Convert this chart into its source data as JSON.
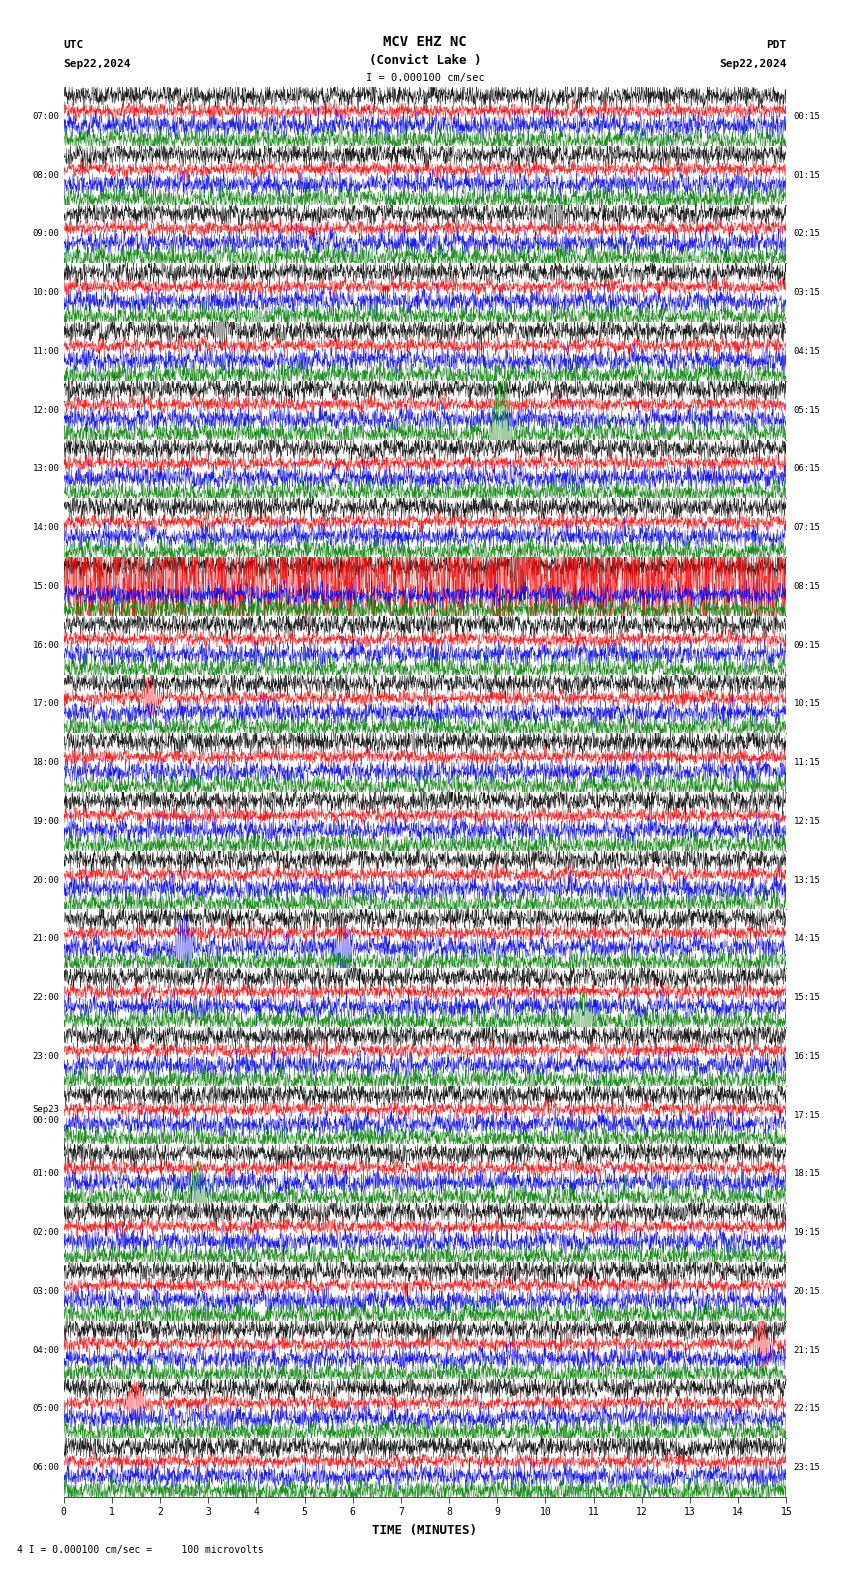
{
  "title_line1": "MCV EHZ NC",
  "title_line2": "(Convict Lake )",
  "scale_label": "I = 0.000100 cm/sec",
  "left_header": "UTC",
  "left_date": "Sep22,2024",
  "right_header": "PDT",
  "right_date": "Sep22,2024",
  "bottom_label": "TIME (MINUTES)",
  "footnote": "4 I = 0.000100 cm/sec =     100 microvolts",
  "xlabel_ticks": [
    0,
    1,
    2,
    3,
    4,
    5,
    6,
    7,
    8,
    9,
    10,
    11,
    12,
    13,
    14,
    15
  ],
  "fig_width": 8.5,
  "fig_height": 15.84,
  "bg_color": "#ffffff",
  "trace_colors": [
    "black",
    "red",
    "blue",
    "green"
  ],
  "num_rows": 24,
  "utc_labels": [
    "07:00",
    "08:00",
    "09:00",
    "10:00",
    "11:00",
    "12:00",
    "13:00",
    "14:00",
    "15:00",
    "16:00",
    "17:00",
    "18:00",
    "19:00",
    "20:00",
    "21:00",
    "22:00",
    "23:00",
    "Sep23\n00:00",
    "01:00",
    "02:00",
    "03:00",
    "04:00",
    "05:00",
    "06:00"
  ],
  "pdt_labels": [
    "00:15",
    "01:15",
    "02:15",
    "03:15",
    "04:15",
    "05:15",
    "06:15",
    "07:15",
    "08:15",
    "09:15",
    "10:15",
    "11:15",
    "12:15",
    "13:15",
    "14:15",
    "15:15",
    "16:15",
    "17:15",
    "18:15",
    "19:15",
    "20:15",
    "21:15",
    "22:15",
    "23:15"
  ],
  "noise_amplitude": 0.06,
  "special_events": [
    {
      "row": 2,
      "trace": 0,
      "time": 10.2,
      "amplitude": 0.25,
      "color": "black"
    },
    {
      "row": 3,
      "trace": 3,
      "time": 4.0,
      "amplitude": 0.15,
      "color": "black"
    },
    {
      "row": 4,
      "trace": 0,
      "time": 3.3,
      "amplitude": 0.22,
      "color": "black"
    },
    {
      "row": 5,
      "trace": 3,
      "time": 9.1,
      "amplitude": 1.2,
      "color": "green"
    },
    {
      "row": 8,
      "trace": 0,
      "time": 9.5,
      "amplitude": 0.5,
      "color": "black"
    },
    {
      "row": 8,
      "trace": 1,
      "time": 0.0,
      "amplitude": 0.6,
      "color": "red",
      "sustained": true
    },
    {
      "row": 10,
      "trace": 1,
      "time": 1.8,
      "amplitude": 0.3,
      "color": "red"
    },
    {
      "row": 14,
      "trace": 2,
      "time": 2.5,
      "amplitude": 0.5,
      "color": "blue"
    },
    {
      "row": 14,
      "trace": 2,
      "time": 5.8,
      "amplitude": 0.4,
      "color": "blue"
    },
    {
      "row": 15,
      "trace": 3,
      "time": 10.8,
      "amplitude": 0.4,
      "color": "green"
    },
    {
      "row": 18,
      "trace": 3,
      "time": 2.8,
      "amplitude": 0.5,
      "color": "green"
    },
    {
      "row": 21,
      "trace": 1,
      "time": 14.5,
      "amplitude": 0.4,
      "color": "red"
    },
    {
      "row": 22,
      "trace": 1,
      "time": 1.5,
      "amplitude": 0.3,
      "color": "red"
    }
  ]
}
